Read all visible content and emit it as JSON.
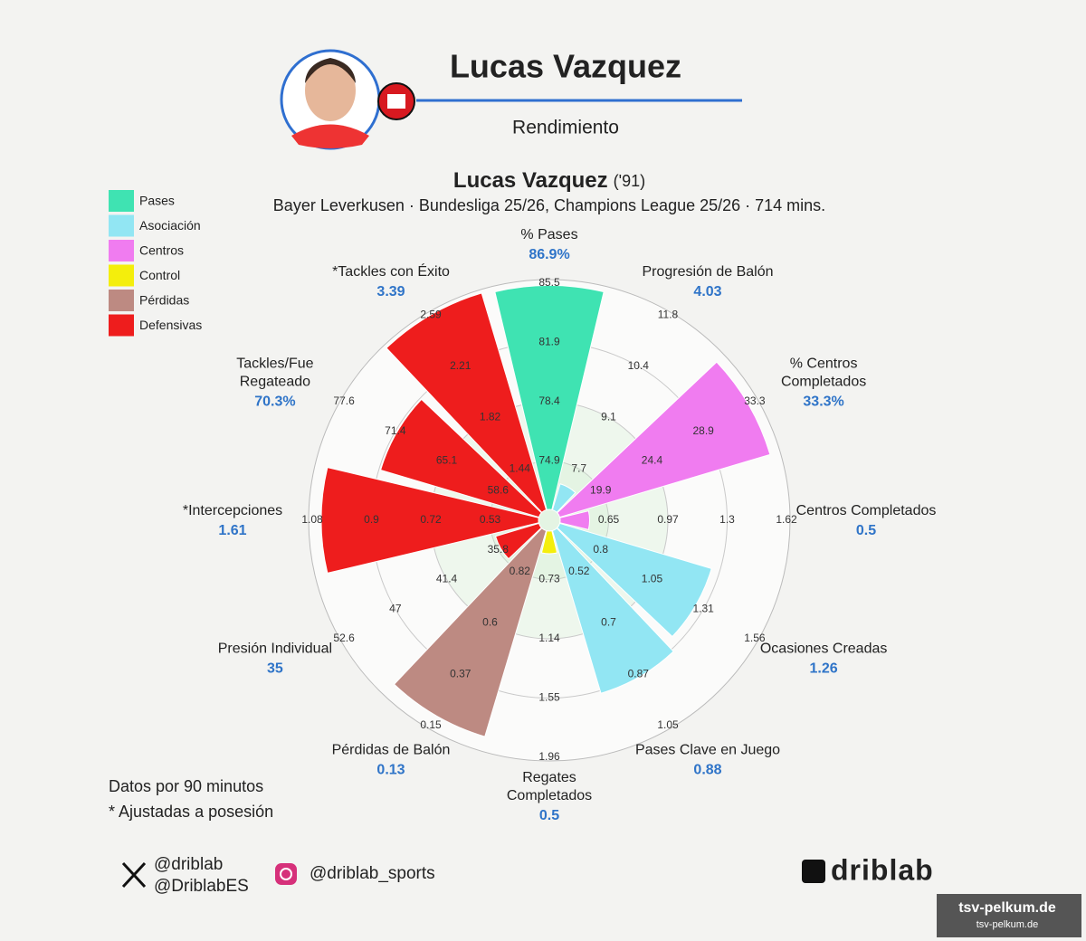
{
  "header": {
    "name": "Lucas Vazquez",
    "subtitle": "Rendimiento"
  },
  "chart_data": {
    "type": "pizza",
    "title": "Lucas Vazquez",
    "title_suffix": "('91)",
    "subtitle": "Bayer Leverkusen · Bundesliga 25/26, Champions League 25/26 · 714 mins.",
    "legend": [
      {
        "name": "Pases",
        "color": "#3fe3b2"
      },
      {
        "name": "Asociación",
        "color": "#92e6f3"
      },
      {
        "name": "Centros",
        "color": "#f07cf0"
      },
      {
        "name": "Control",
        "color": "#f4ee0c"
      },
      {
        "name": "Pérdidas",
        "color": "#bd8a82"
      },
      {
        "name": "Defensivas",
        "color": "#ee1d1d"
      }
    ],
    "slices": [
      {
        "label": [
          "% Pases"
        ],
        "value": 86.9,
        "value_label": "86.9%",
        "percentile": 99,
        "group": 0,
        "rings": [
          74.9,
          78.4,
          81.9,
          85.5
        ]
      },
      {
        "label": [
          "Progresión de Balón"
        ],
        "value": 4.03,
        "percentile": 12,
        "group": 1,
        "rings": [
          7.7,
          9.1,
          10.4,
          11.8
        ]
      },
      {
        "label": [
          "% Centros",
          "Completados"
        ],
        "value": 33.3,
        "value_label": "33.3%",
        "percentile": 97,
        "group": 2,
        "rings": [
          19.9,
          24.4,
          28.9,
          33.3
        ]
      },
      {
        "label": [
          "Centros Completados"
        ],
        "value": 0.5,
        "percentile": 13,
        "group": 2,
        "rings": [
          0.65,
          0.97,
          1.3,
          1.62
        ]
      },
      {
        "label": [
          "Ocasiones Creadas"
        ],
        "value": 1.26,
        "percentile": 70,
        "group": 1,
        "rings": [
          0.8,
          1.05,
          1.31,
          1.56
        ]
      },
      {
        "label": [
          "Pases Clave en Juego"
        ],
        "value": 0.88,
        "percentile": 75,
        "group": 1,
        "rings": [
          0.52,
          0.7,
          0.87,
          1.05
        ]
      },
      {
        "label": [
          "Regates",
          "Completados"
        ],
        "value": 0.5,
        "percentile": 10,
        "group": 3,
        "rings": [
          0.73,
          1.14,
          1.55,
          1.96
        ]
      },
      {
        "label": [
          "Pérdidas de Balón"
        ],
        "value": 0.13,
        "percentile": 95,
        "group": 4,
        "rings": [
          0.82,
          0.6,
          0.37,
          0.15
        ]
      },
      {
        "label": [
          "Presión Individual"
        ],
        "value": 35,
        "percentile": 20,
        "group": 5,
        "rings": [
          35.8,
          41.4,
          47,
          52.6
        ]
      },
      {
        "label": [
          "*Intercepciones"
        ],
        "value": 1.61,
        "percentile": 96,
        "group": 5,
        "rings": [
          0.53,
          0.72,
          0.9,
          1.08
        ]
      },
      {
        "label": [
          "Tackles/Fue",
          "Regateado"
        ],
        "value": 70.3,
        "value_label": "70.3%",
        "percentile": 73,
        "group": 5,
        "rings": [
          58.6,
          65.1,
          71.4,
          77.6
        ]
      },
      {
        "label": [
          "*Tackles con Éxito"
        ],
        "value": 3.39,
        "percentile": 100,
        "group": 5,
        "rings": [
          1.44,
          1.82,
          2.21,
          2.59
        ]
      }
    ]
  },
  "notes": [
    "Datos por 90 minutos",
    "* Ajustadas a posesión"
  ],
  "social": {
    "x_handles": [
      "@driblab",
      "@DriblabES"
    ],
    "instagram": "@driblab_sports",
    "brand": "driblab"
  },
  "watermark": [
    "tsv-pelkum.de",
    "tsv-pelkum.de"
  ]
}
